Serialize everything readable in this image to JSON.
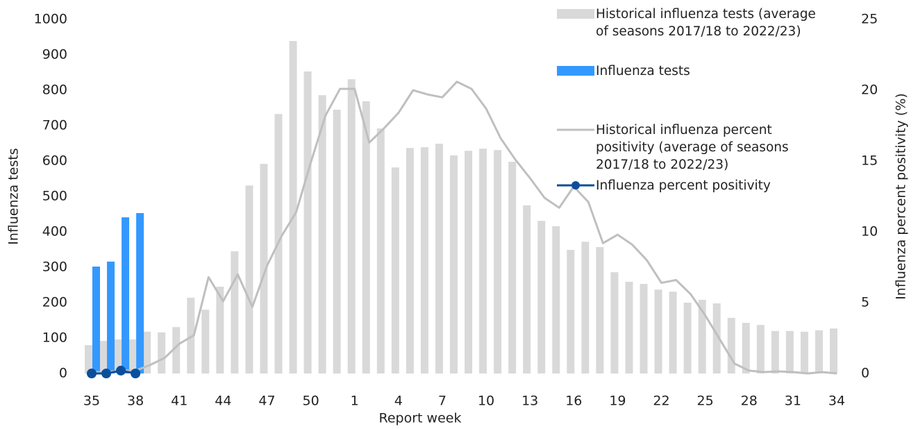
{
  "chart_data": {
    "type": "bar",
    "xlabel": "Report week",
    "ylabel": "Influenza tests",
    "y2label": "Influenza percent positivity (%)",
    "categories": [
      "35",
      null,
      null,
      "38",
      null,
      null,
      "41",
      null,
      null,
      "44",
      null,
      null,
      "47",
      null,
      null,
      "50",
      null,
      null,
      "1",
      null,
      null,
      "4",
      null,
      null,
      "7",
      null,
      null,
      "10",
      null,
      null,
      "13",
      null,
      null,
      "16",
      null,
      null,
      "19",
      null,
      null,
      "22",
      null,
      null,
      "25",
      null,
      null,
      "28",
      null,
      null,
      "31",
      null,
      null,
      "34"
    ],
    "ylim": [
      0,
      1000
    ],
    "yticks": [
      0,
      100,
      200,
      300,
      400,
      500,
      600,
      700,
      800,
      900,
      1000
    ],
    "y2lim": [
      0,
      25
    ],
    "y2ticks": [
      0,
      5,
      10,
      15,
      20,
      25
    ],
    "legend": "upper right",
    "grid": false,
    "series": [
      {
        "name": "Historical influenza tests (average of seasons 2017/18 to 2022/23)",
        "type": "bar",
        "color": "#d9d9d9",
        "values": [
          80,
          92,
          96,
          96,
          118,
          116,
          131,
          214,
          180,
          245,
          345,
          531,
          592,
          733,
          939,
          853,
          786,
          745,
          831,
          769,
          692,
          582,
          637,
          639,
          649,
          616,
          629,
          635,
          631,
          598,
          475,
          431,
          416,
          349,
          372,
          357,
          286,
          259,
          253,
          237,
          231,
          200,
          208,
          198,
          157,
          143,
          137,
          120,
          120,
          118,
          122,
          127
        ]
      },
      {
        "name": "Influenza tests",
        "type": "bar",
        "color": "#3399ff",
        "values": [
          302,
          316,
          441,
          453,
          null,
          null,
          null,
          null,
          null,
          null,
          null,
          null,
          null,
          null,
          null,
          null,
          null,
          null,
          null,
          null,
          null,
          null,
          null,
          null,
          null,
          null,
          null,
          null,
          null,
          null,
          null,
          null,
          null,
          null,
          null,
          null,
          null,
          null,
          null,
          null,
          null,
          null,
          null,
          null,
          null,
          null,
          null,
          null,
          null,
          null,
          null,
          null
        ]
      },
      {
        "name": "Historical influenza percent positivity (average of seasons 2017/18 to 2022/23)",
        "type": "line",
        "axis": "y2",
        "color": "#bfbfbf",
        "values": [
          0.1,
          0.1,
          0.2,
          0.2,
          0.6,
          1.1,
          2.1,
          2.7,
          6.8,
          5.1,
          7.0,
          4.7,
          7.6,
          9.7,
          11.4,
          14.9,
          18.2,
          20.1,
          20.1,
          16.3,
          17.3,
          18.4,
          20.0,
          19.7,
          19.5,
          20.6,
          20.1,
          18.7,
          16.6,
          15.1,
          13.8,
          12.4,
          11.7,
          13.2,
          12.1,
          9.2,
          9.8,
          9.1,
          8.0,
          6.4,
          6.6,
          5.6,
          4.1,
          2.4,
          0.7,
          0.2,
          0.1,
          0.15,
          0.1,
          0,
          0.1,
          0
        ]
      },
      {
        "name": "Influenza percent positivity",
        "type": "line",
        "axis": "y2",
        "color": "#0b4f9c",
        "marker": true,
        "values": [
          0,
          0,
          0.2,
          0,
          null,
          null,
          null,
          null,
          null,
          null,
          null,
          null,
          null,
          null,
          null,
          null,
          null,
          null,
          null,
          null,
          null,
          null,
          null,
          null,
          null,
          null,
          null,
          null,
          null,
          null,
          null,
          null,
          null,
          null,
          null,
          null,
          null,
          null,
          null,
          null,
          null,
          null,
          null,
          null,
          null,
          null,
          null,
          null,
          null,
          null,
          null,
          null
        ]
      }
    ]
  }
}
